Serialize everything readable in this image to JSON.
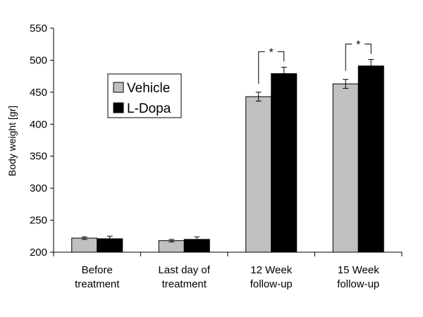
{
  "chart_data": {
    "type": "bar",
    "categories": [
      [
        "Before",
        "treatment"
      ],
      [
        "Last day of",
        "treatment"
      ],
      [
        "12 Week",
        "follow-up"
      ],
      [
        "15 Week",
        "follow-up"
      ]
    ],
    "series": [
      {
        "name": "Vehicle",
        "color": "#c0c0c0",
        "values": [
          222,
          218,
          443,
          463
        ],
        "errors": [
          2,
          2,
          7,
          7
        ]
      },
      {
        "name": "L-Dopa",
        "color": "#000000",
        "values": [
          221,
          220,
          479,
          491
        ],
        "errors": [
          4,
          4,
          10,
          10
        ]
      }
    ],
    "ylabel": "Body weight [gr]",
    "ylim": [
      200,
      550
    ],
    "yticks": [
      200,
      250,
      300,
      350,
      400,
      450,
      500,
      550
    ],
    "grid": false,
    "legend": "upper-left, boxed",
    "annotations": [
      {
        "category_index": 2,
        "text": "*"
      },
      {
        "category_index": 3,
        "text": "*"
      }
    ]
  }
}
